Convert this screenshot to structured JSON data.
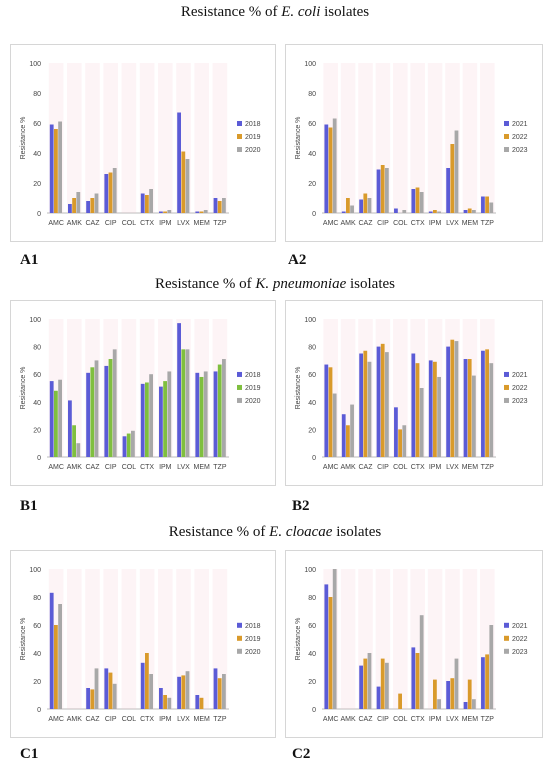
{
  "titles": {
    "a": {
      "prefix": "Resistance % of ",
      "organism": "E. coli",
      "suffix": " isolates"
    },
    "b": {
      "prefix": "Resistance % of ",
      "organism": "K. pneumoniae",
      "suffix": " isolates"
    },
    "c": {
      "prefix": "Resistance % of ",
      "organism": "E. cloacae",
      "suffix": " isolates"
    }
  },
  "panel_labels": {
    "A1": "A1",
    "A2": "A2",
    "B1": "B1",
    "B2": "B2",
    "C1": "C1",
    "C2": "C2"
  },
  "colors": {
    "series1": "#5b5bd6",
    "series2": "#d99a2b",
    "series3": "#a8a8a8",
    "series2_B1": "#7fbf3f",
    "pink": "#f4c3cf"
  },
  "chart_data": [
    {
      "id": "A1",
      "type": "bar",
      "ylabel": "Resistance %",
      "ylim": [
        0,
        100
      ],
      "yticks": [
        0,
        20,
        40,
        60,
        80,
        100
      ],
      "categories": [
        "AMC",
        "AMK",
        "CAZ",
        "CIP",
        "COL",
        "CTX",
        "IPM",
        "LVX",
        "MEM",
        "TZP"
      ],
      "series": [
        {
          "name": "2018",
          "values": [
            59,
            6,
            8,
            26,
            0,
            13,
            1,
            67,
            1,
            10
          ]
        },
        {
          "name": "2019",
          "values": [
            56,
            10,
            10,
            27,
            0,
            12,
            1,
            41,
            1,
            8
          ]
        },
        {
          "name": "2020",
          "values": [
            61,
            14,
            13,
            30,
            0,
            16,
            2,
            36,
            2,
            10
          ]
        }
      ]
    },
    {
      "id": "A2",
      "type": "bar",
      "ylabel": "Resistance %",
      "ylim": [
        0,
        100
      ],
      "yticks": [
        0,
        20,
        40,
        60,
        80,
        100
      ],
      "categories": [
        "AMC",
        "AMK",
        "CAZ",
        "CIP",
        "COL",
        "CTX",
        "IPM",
        "LVX",
        "MEM",
        "TZP"
      ],
      "series": [
        {
          "name": "2021",
          "values": [
            59,
            1,
            9,
            29,
            3,
            16,
            1,
            30,
            2,
            11
          ]
        },
        {
          "name": "2022",
          "values": [
            57,
            10,
            13,
            32,
            0,
            17,
            2,
            46,
            3,
            11
          ]
        },
        {
          "name": "2023",
          "values": [
            63,
            5,
            10,
            30,
            2,
            14,
            1,
            55,
            2,
            7
          ]
        }
      ]
    },
    {
      "id": "B1",
      "type": "bar",
      "ylabel": "Resistance %",
      "ylim": [
        0,
        100
      ],
      "yticks": [
        0,
        20,
        40,
        60,
        80,
        100
      ],
      "categories": [
        "AMC",
        "AMK",
        "CAZ",
        "CIP",
        "COL",
        "CTX",
        "IPM",
        "LVX",
        "MEM",
        "TZP"
      ],
      "series": [
        {
          "name": "2018",
          "values": [
            55,
            41,
            61,
            66,
            15,
            53,
            51,
            97,
            61,
            62
          ]
        },
        {
          "name": "2019",
          "values": [
            48,
            23,
            65,
            71,
            17,
            54,
            55,
            78,
            58,
            67
          ]
        },
        {
          "name": "2020",
          "values": [
            56,
            10,
            70,
            78,
            19,
            60,
            62,
            78,
            62,
            71
          ]
        }
      ]
    },
    {
      "id": "B2",
      "type": "bar",
      "ylabel": "Resistance %",
      "ylim": [
        0,
        100
      ],
      "yticks": [
        0,
        20,
        40,
        60,
        80,
        100
      ],
      "categories": [
        "AMC",
        "AMK",
        "CAZ",
        "CIP",
        "COL",
        "CTX",
        "IPM",
        "LVX",
        "MEM",
        "TZP"
      ],
      "series": [
        {
          "name": "2021",
          "values": [
            67,
            31,
            75,
            80,
            36,
            75,
            70,
            80,
            71,
            77
          ]
        },
        {
          "name": "2022",
          "values": [
            65,
            23,
            77,
            82,
            20,
            68,
            69,
            85,
            71,
            78
          ]
        },
        {
          "name": "2023",
          "values": [
            46,
            38,
            69,
            76,
            23,
            50,
            58,
            84,
            59,
            68
          ]
        }
      ]
    },
    {
      "id": "C1",
      "type": "bar",
      "ylabel": "Resistance %",
      "ylim": [
        0,
        100
      ],
      "yticks": [
        0,
        20,
        40,
        60,
        80,
        100
      ],
      "categories": [
        "AMC",
        "AMK",
        "CAZ",
        "CIP",
        "COL",
        "CTX",
        "IPM",
        "LVX",
        "MEM",
        "TZP"
      ],
      "series": [
        {
          "name": "2018",
          "values": [
            83,
            0,
            15,
            29,
            0,
            33,
            15,
            23,
            10,
            29
          ]
        },
        {
          "name": "2019",
          "values": [
            60,
            0,
            14,
            26,
            0,
            40,
            10,
            24,
            8,
            22
          ]
        },
        {
          "name": "2020",
          "values": [
            75,
            0,
            29,
            18,
            0,
            25,
            8,
            27,
            0,
            25
          ]
        }
      ]
    },
    {
      "id": "C2",
      "type": "bar",
      "ylabel": "Resistance %",
      "ylim": [
        0,
        100
      ],
      "yticks": [
        0,
        20,
        40,
        60,
        80,
        100
      ],
      "categories": [
        "AMC",
        "AMK",
        "CAZ",
        "CIP",
        "COL",
        "CTX",
        "IPM",
        "LVX",
        "MEM",
        "TZP"
      ],
      "series": [
        {
          "name": "2021",
          "values": [
            89,
            0,
            31,
            16,
            0,
            44,
            0,
            20,
            5,
            37
          ]
        },
        {
          "name": "2022",
          "values": [
            80,
            0,
            36,
            36,
            11,
            40,
            21,
            22,
            21,
            39
          ]
        },
        {
          "name": "2023",
          "values": [
            100,
            0,
            40,
            33,
            0,
            67,
            7,
            36,
            7,
            60
          ]
        }
      ]
    }
  ]
}
